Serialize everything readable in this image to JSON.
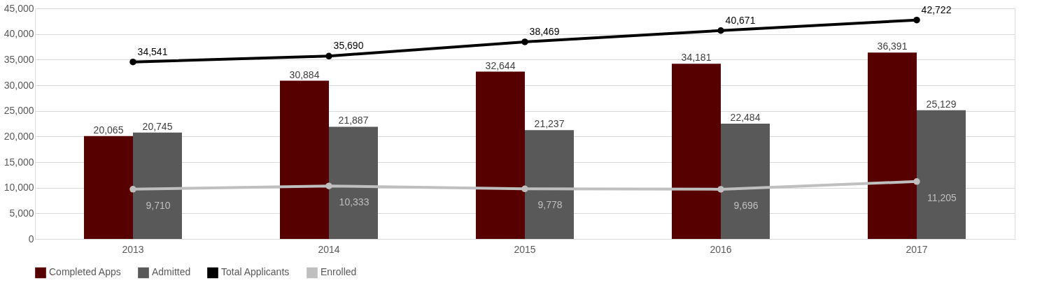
{
  "chart_data": {
    "type": "bar",
    "categories": [
      "2013",
      "2014",
      "2015",
      "2016",
      "2017"
    ],
    "series": [
      {
        "name": "Completed Apps",
        "color": "#560000",
        "values": [
          20065,
          30884,
          32644,
          34181,
          36391
        ],
        "value_labels": [
          "20,065",
          "30,884",
          "32,644",
          "34,181",
          "36,391"
        ]
      },
      {
        "name": "Admitted",
        "color": "#595959",
        "values": [
          20745,
          21887,
          21237,
          22484,
          25129
        ],
        "value_labels": [
          "20,745",
          "21,887",
          "21,237",
          "22,484",
          "25,129"
        ]
      },
      {
        "name": "Total Applicants",
        "type": "line",
        "color": "#000000",
        "values": [
          34541,
          35690,
          38469,
          40671,
          42722
        ],
        "value_labels": [
          "34,541",
          "35,690",
          "38,469",
          "40,671",
          "42,722"
        ]
      },
      {
        "name": "Enrolled",
        "type": "line",
        "color": "#bfbfbf",
        "values": [
          9710,
          10333,
          9778,
          9696,
          11205
        ],
        "value_labels": [
          "9,710",
          "10,333",
          "9,778",
          "9,696",
          "11,205"
        ]
      }
    ],
    "ylim": [
      0,
      45000
    ],
    "yticks": [
      0,
      {
        "value": 5000,
        "label": "5,000"
      },
      {
        "value": 10000,
        "label": "10,000"
      },
      {
        "value": 15000,
        "label": "15,000"
      },
      {
        "value": 20000,
        "label": "20,000"
      },
      {
        "value": 25000,
        "label": "25,000"
      },
      {
        "value": 30000,
        "label": "30,000"
      },
      {
        "value": 35000,
        "label": "35,000"
      },
      {
        "value": 40000,
        "label": "40,000"
      },
      {
        "value": 45000,
        "label": "45,000"
      }
    ],
    "grid": "y",
    "legend": "bottom",
    "marker": "circle",
    "line_style": "solid"
  }
}
